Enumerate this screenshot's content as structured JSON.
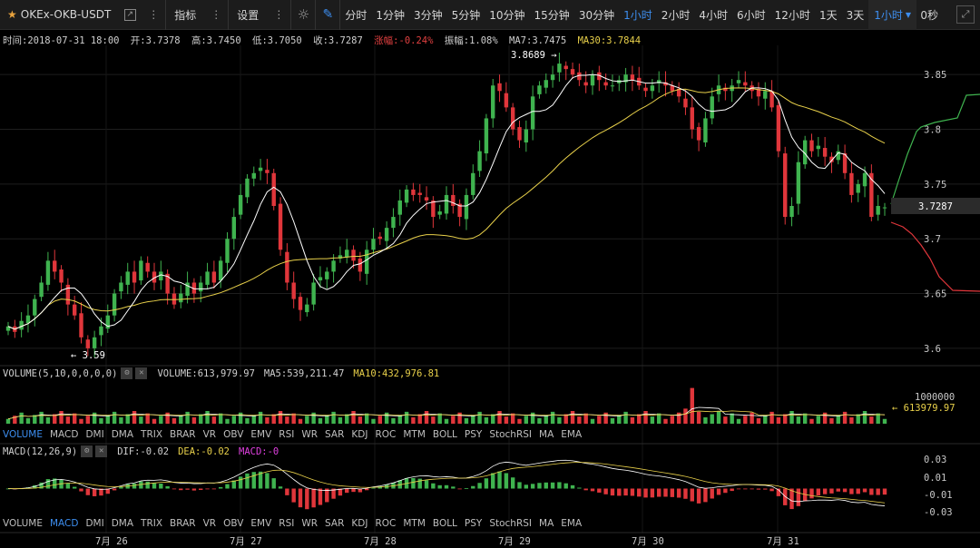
{
  "toolbar": {
    "symbol": "OKEx-OKB-USDT",
    "indicators_label": "指标",
    "settings_label": "设置",
    "periods": [
      "分时",
      "1分钟",
      "3分钟",
      "5分钟",
      "10分钟",
      "15分钟",
      "30分钟",
      "1小时",
      "2小时",
      "4小时",
      "6小时",
      "12小时",
      "1天",
      "3天"
    ],
    "active_period": "1小时",
    "period_dropdown": "1小时",
    "countdown": "0秒"
  },
  "info": {
    "time": "时间:2018-07-31 18:00",
    "open": "开:3.7378",
    "high": "高:3.7450",
    "low": "低:3.7050",
    "close": "收:3.7287",
    "change": "涨幅:-0.24%",
    "amplitude": "振幅:1.08%",
    "ma7": "MA7:3.7475",
    "ma30": "MA30:3.7844"
  },
  "price_axis": {
    "ticks": [
      "3.85",
      "3.8",
      "3.75",
      "3.7",
      "3.65",
      "3.6"
    ],
    "current_price": "3.7287",
    "high_marker": "3.8689",
    "low_marker": "3.59"
  },
  "volume": {
    "title": "VOLUME(5,10,0,0,0,0)",
    "value": "VOLUME:613,979.97",
    "ma5": "MA5:539,211.47",
    "ma10": "MA10:432,976.81",
    "axis_label": "1000000",
    "current_label": "613979.97"
  },
  "macd": {
    "title": "MACD(12,26,9)",
    "dif": "DIF:-0.02",
    "dea": "DEA:-0.02",
    "macd": "MACD:-0",
    "ticks": [
      "0.03",
      "0.01",
      "-0.01",
      "-0.03"
    ]
  },
  "indicator_tabs": [
    "VOLUME",
    "MACD",
    "DMI",
    "DMA",
    "TRIX",
    "BRAR",
    "VR",
    "OBV",
    "EMV",
    "RSI",
    "WR",
    "SAR",
    "KDJ",
    "ROC",
    "MTM",
    "BOLL",
    "PSY",
    "StochRSI",
    "MA",
    "EMA"
  ],
  "tabs_row1_active": "VOLUME",
  "tabs_row2_active": "MACD",
  "date_axis": [
    "7月 26",
    "7月 27",
    "7月 28",
    "7月 29",
    "7月 30",
    "7月 31"
  ],
  "colors": {
    "up": "#3fb34f",
    "down": "#e0363b",
    "ma7": "#ffffff",
    "ma30": "#e8d04a",
    "accent": "#3d8ef0"
  },
  "chart_data": {
    "type": "candlestick",
    "interval": "1小时",
    "ylim": [
      3.585,
      3.875
    ],
    "close": [
      3.62,
      3.615,
      3.625,
      3.63,
      3.645,
      3.66,
      3.68,
      3.67,
      3.66,
      3.64,
      3.63,
      3.61,
      3.6,
      3.61,
      3.62,
      3.63,
      3.65,
      3.66,
      3.67,
      3.66,
      3.68,
      3.67,
      3.66,
      3.67,
      3.65,
      3.64,
      3.65,
      3.66,
      3.65,
      3.66,
      3.67,
      3.66,
      3.68,
      3.7,
      3.72,
      3.74,
      3.755,
      3.76,
      3.765,
      3.76,
      3.73,
      3.69,
      3.66,
      3.645,
      3.635,
      3.64,
      3.66,
      3.665,
      3.67,
      3.68,
      3.685,
      3.69,
      3.68,
      3.67,
      3.69,
      3.7,
      3.7,
      3.71,
      3.72,
      3.735,
      3.745,
      3.74,
      3.74,
      3.735,
      3.72,
      3.725,
      3.74,
      3.73,
      3.72,
      3.74,
      3.76,
      3.78,
      3.81,
      3.84,
      3.835,
      3.82,
      3.8,
      3.79,
      3.8,
      3.83,
      3.84,
      3.845,
      3.85,
      3.86,
      3.855,
      3.85,
      3.845,
      3.84,
      3.85,
      3.845,
      3.84,
      3.84,
      3.845,
      3.85,
      3.845,
      3.84,
      3.835,
      3.84,
      3.845,
      3.84,
      3.835,
      3.83,
      3.82,
      3.8,
      3.79,
      3.81,
      3.83,
      3.84,
      3.835,
      3.84,
      3.845,
      3.84,
      3.835,
      3.83,
      3.835,
      3.82,
      3.78,
      3.72,
      3.73,
      3.77,
      3.79,
      3.78,
      3.785,
      3.775,
      3.77,
      3.78,
      3.76,
      3.74,
      3.75,
      3.76,
      3.72,
      3.73,
      3.7287
    ],
    "ma7_last": 3.7475,
    "ma30_last": 3.7844
  }
}
